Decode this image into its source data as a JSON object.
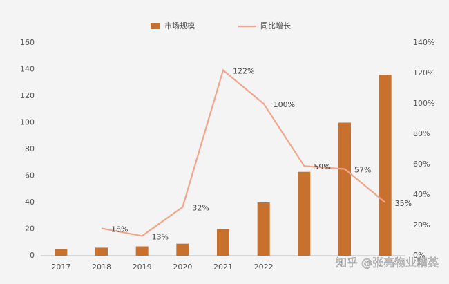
{
  "chart_data": {
    "type": "bar-line",
    "categories": [
      "2017",
      "2018",
      "2019",
      "2020",
      "2021",
      "2022",
      null,
      null,
      null
    ],
    "series": [
      {
        "name": "市场规模",
        "type": "bar",
        "color": "#c8702e",
        "values": [
          5,
          6,
          7,
          9,
          20,
          40,
          63,
          100,
          136
        ]
      },
      {
        "name": "同比增长",
        "type": "line",
        "axis": "y2",
        "color": "#f0a58c",
        "values": [
          null,
          18,
          13,
          32,
          122,
          100,
          59,
          57,
          35
        ],
        "value_labels": [
          null,
          "18%",
          "13%",
          "32%",
          "122%",
          "100%",
          "59%",
          "57%",
          "35%"
        ]
      }
    ],
    "ylim": [
      0,
      160
    ],
    "yticks": [
      0,
      20,
      40,
      60,
      80,
      100,
      120,
      140,
      160
    ],
    "y2lim": [
      0,
      140
    ],
    "y2ticks": [
      {
        "value": 0,
        "label": "0%"
      },
      {
        "value": 20,
        "label": "20%"
      },
      {
        "value": 40,
        "label": "40%"
      },
      {
        "value": 60,
        "label": "60%"
      },
      {
        "value": 80,
        "label": "80%"
      },
      {
        "value": 100,
        "label": "100%"
      },
      {
        "value": 120,
        "label": "120%"
      },
      {
        "value": 140,
        "label": "140%"
      }
    ],
    "watermark": "知乎 @张亮物业精英"
  }
}
